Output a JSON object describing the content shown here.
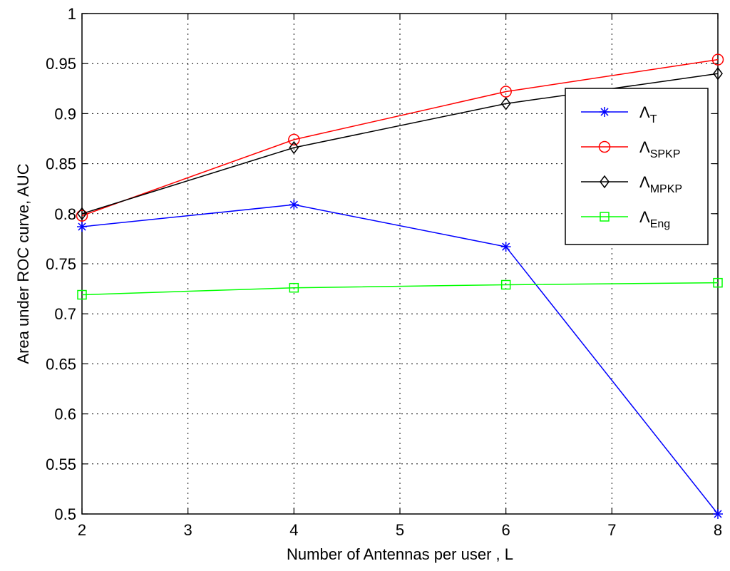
{
  "chart_data": {
    "type": "line",
    "title": "",
    "xlabel": "Number of Antennas per user , L",
    "ylabel": "Area under ROC curve, AUC",
    "x": [
      2,
      4,
      6,
      8
    ],
    "xlim": [
      2,
      8
    ],
    "ylim": [
      0.5,
      1
    ],
    "xticks": [
      "2",
      "3",
      "4",
      "5",
      "6",
      "7",
      "8"
    ],
    "yticks": [
      "0.5",
      "0.55",
      "0.6",
      "0.65",
      "0.7",
      "0.75",
      "0.8",
      "0.85",
      "0.9",
      "0.95",
      "1"
    ],
    "grid": true,
    "legend_position": "top-right",
    "series": [
      {
        "name": "Λ",
        "subscript": "T",
        "color": "#0000ff",
        "marker": "star",
        "values": [
          0.787,
          0.809,
          0.767,
          0.5
        ]
      },
      {
        "name": "Λ",
        "subscript": "SPKP",
        "color": "#ff0000",
        "marker": "circle",
        "values": [
          0.798,
          0.874,
          0.922,
          0.954
        ]
      },
      {
        "name": "Λ",
        "subscript": "MPKP",
        "color": "#000000",
        "marker": "diamond",
        "values": [
          0.8,
          0.866,
          0.91,
          0.94
        ]
      },
      {
        "name": "Λ",
        "subscript": "Eng",
        "color": "#00ff00",
        "marker": "square",
        "values": [
          0.719,
          0.726,
          0.729,
          0.731
        ]
      }
    ]
  }
}
